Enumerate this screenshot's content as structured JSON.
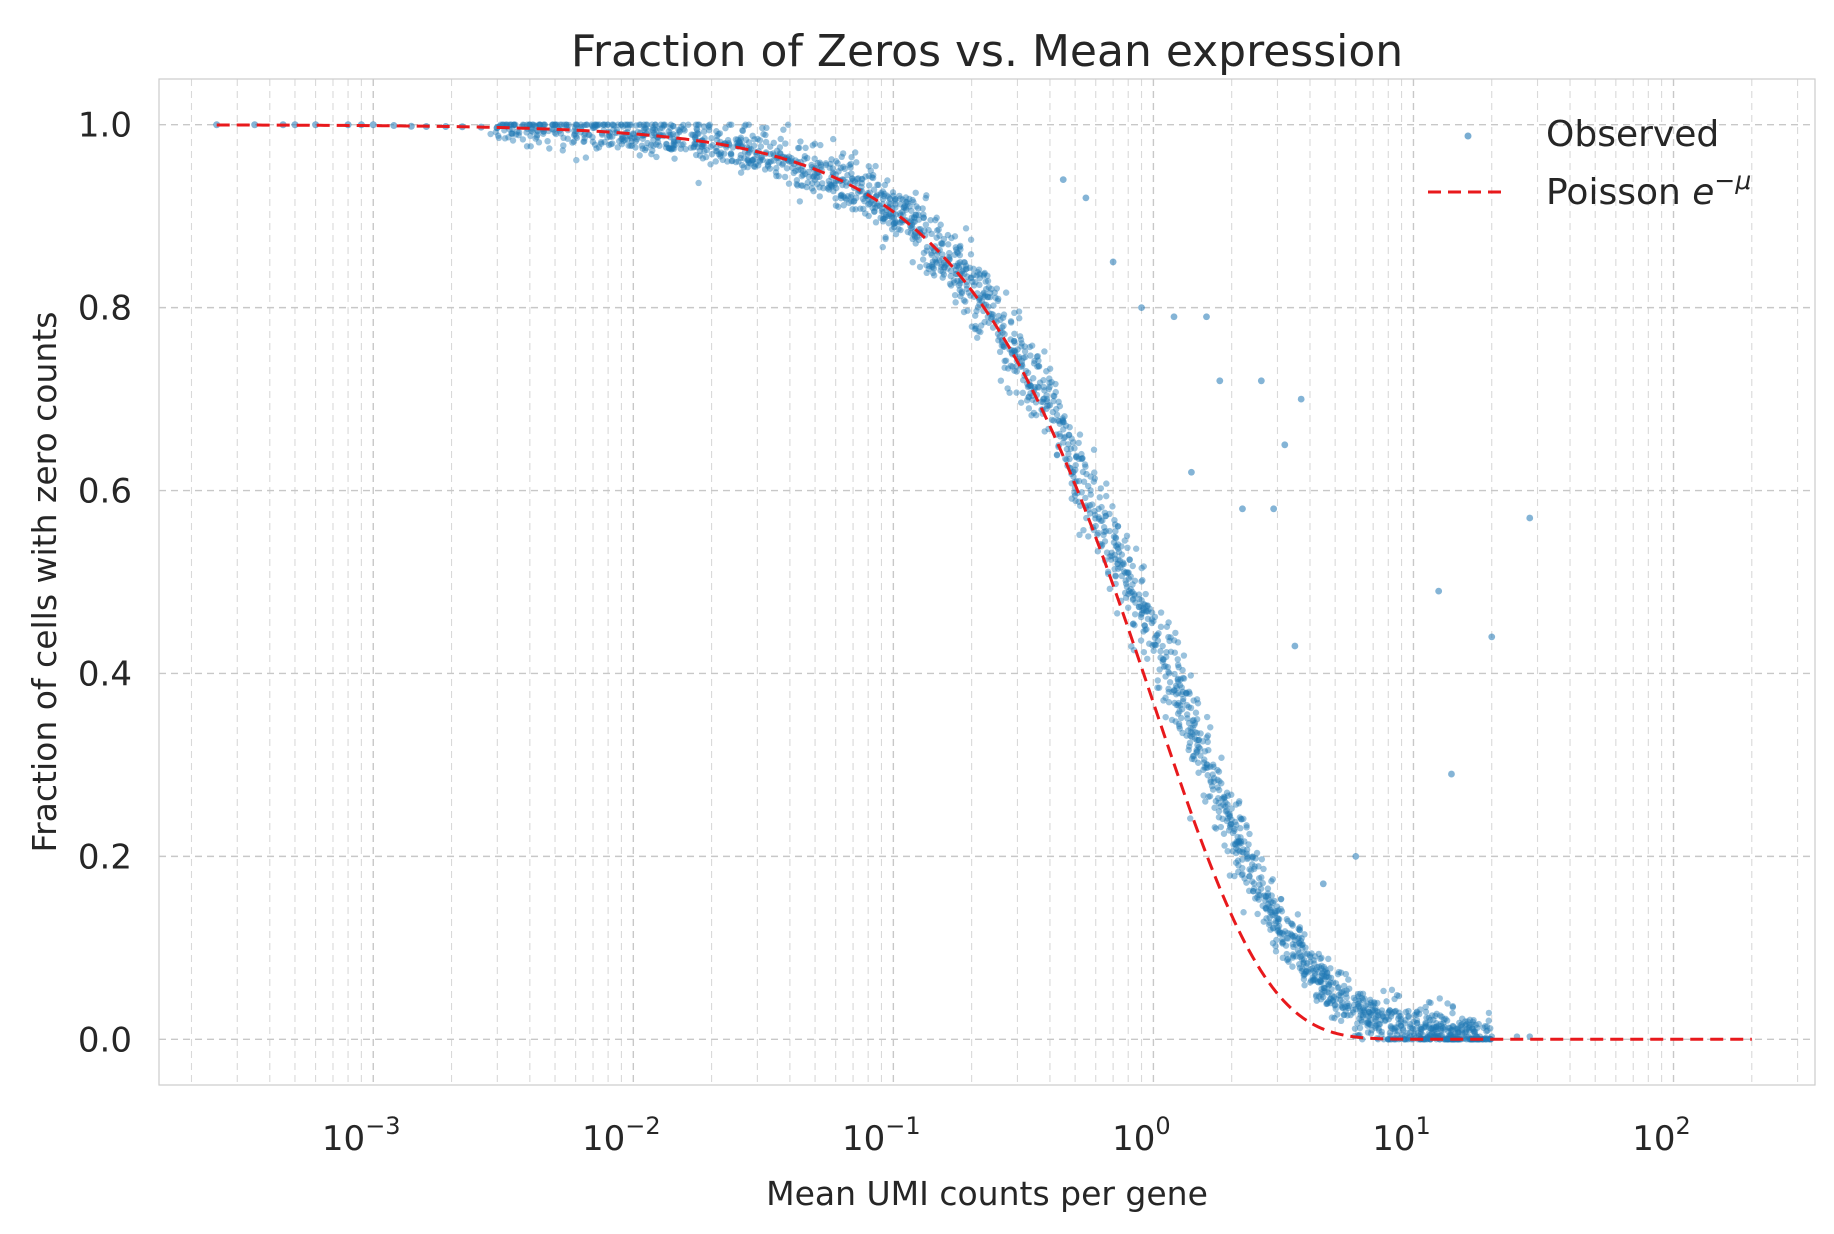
{
  "chart_data": {
    "type": "scatter",
    "title": "Fraction of Zeros vs. Mean expression",
    "xlabel": "Mean UMI counts per gene",
    "ylabel": "Fraction of cells with zero counts",
    "xscale": "log",
    "xlim": [
      0.00015,
      350
    ],
    "ylim": [
      -0.05,
      1.05
    ],
    "x_ticks": [
      {
        "base": "10",
        "exp": "−3",
        "value": 0.001
      },
      {
        "base": "10",
        "exp": "−2",
        "value": 0.01
      },
      {
        "base": "10",
        "exp": "−1",
        "value": 0.1
      },
      {
        "base": "10",
        "exp": "0",
        "value": 1
      },
      {
        "base": "10",
        "exp": "1",
        "value": 10
      },
      {
        "base": "10",
        "exp": "2",
        "value": 100
      }
    ],
    "y_ticks": [
      "0.0",
      "0.2",
      "0.4",
      "0.6",
      "0.8",
      "1.0"
    ],
    "grid": true,
    "legend": {
      "placement": "top-right",
      "observed_label": "Observed",
      "poisson_label": "Poisson ",
      "poisson_math_base": "e",
      "poisson_math_exp": "−μ"
    },
    "colors": {
      "observed": "#1f77b4",
      "poisson": "#e8191c",
      "grid": "#c8c8c8",
      "text": "#262626"
    },
    "series": [
      {
        "type": "scatter",
        "description_points": "approximately 10000 gene-level points lying slightly above the Poisson curve; sampled representative points",
        "x": [
          0.00025,
          0.0004,
          0.0006,
          0.001,
          0.0015,
          0.002,
          0.003,
          0.005,
          0.008,
          0.012,
          0.02,
          0.03,
          0.05,
          0.08,
          0.1,
          0.15,
          0.2,
          0.3,
          0.4,
          0.5,
          0.6,
          0.7,
          0.8,
          1.0,
          1.2,
          1.5,
          2.0,
          2.5,
          3.0,
          4.0,
          5.0,
          6.0,
          8.0,
          10.0,
          15.0,
          20.0,
          30.0
        ],
        "y": [
          1.0,
          1.0,
          1.0,
          1.0,
          0.998,
          0.998,
          0.997,
          0.995,
          0.992,
          0.988,
          0.98,
          0.97,
          0.95,
          0.925,
          0.905,
          0.865,
          0.825,
          0.75,
          0.69,
          0.63,
          0.58,
          0.54,
          0.5,
          0.44,
          0.39,
          0.32,
          0.23,
          0.17,
          0.13,
          0.08,
          0.05,
          0.03,
          0.015,
          0.01,
          0.004,
          0.002,
          0.001
        ]
      },
      {
        "type": "line",
        "style": "dashed",
        "function": "exp(-x)",
        "x_range": [
          0.00025,
          200
        ]
      }
    ],
    "outliers": {
      "x": [
        0.55,
        0.7,
        0.9,
        1.2,
        1.8,
        2.6,
        3.2,
        3.7,
        2.2,
        2.9,
        1.4,
        0.45,
        12.5,
        14.0,
        20.0,
        28.0,
        4.5,
        6.0,
        3.5,
        1.6
      ],
      "y": [
        0.92,
        0.85,
        0.8,
        0.79,
        0.72,
        0.72,
        0.65,
        0.7,
        0.58,
        0.58,
        0.62,
        0.94,
        0.49,
        0.29,
        0.44,
        0.57,
        0.17,
        0.2,
        0.43,
        0.79
      ]
    }
  }
}
